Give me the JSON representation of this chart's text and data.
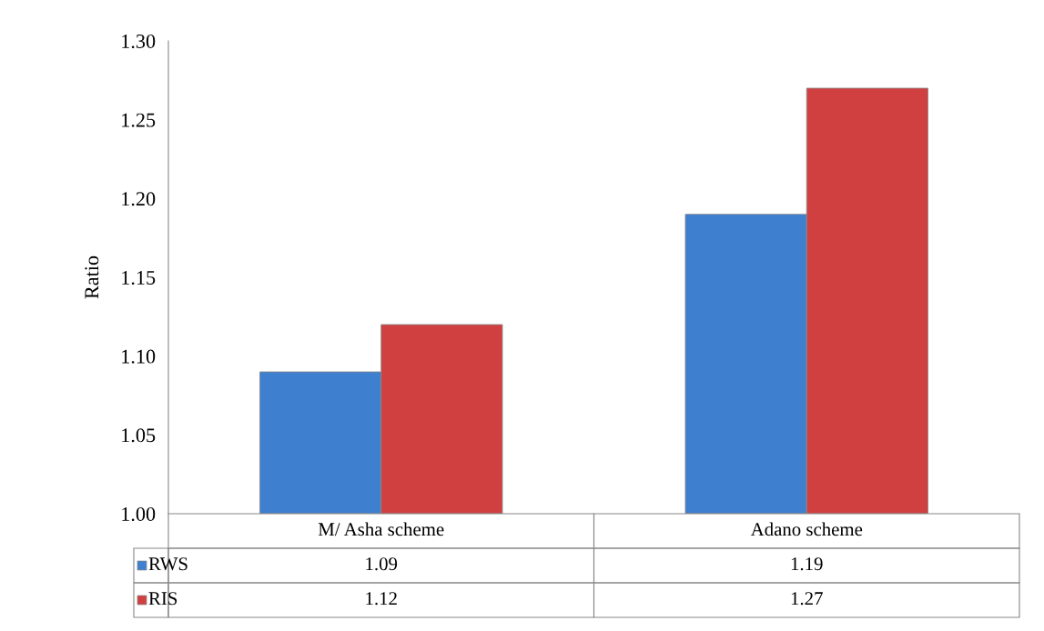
{
  "chart_data": {
    "type": "bar",
    "ylabel": "Ratio",
    "categories": [
      "M/ Asha scheme",
      "Adano scheme"
    ],
    "series": [
      {
        "name": "RWS",
        "color": "#3f7fd0",
        "values": [
          1.09,
          1.19
        ]
      },
      {
        "name": "RIS",
        "color": "#d04040",
        "values": [
          1.12,
          1.27
        ]
      }
    ],
    "ylim": [
      1.0,
      1.3
    ],
    "yticks": [
      {
        "value": 1.0,
        "label": "1.00"
      },
      {
        "value": 1.05,
        "label": "1.05"
      },
      {
        "value": 1.1,
        "label": "1.10"
      },
      {
        "value": 1.15,
        "label": "1.15"
      },
      {
        "value": 1.2,
        "label": "1.20"
      },
      {
        "value": 1.25,
        "label": "1.25"
      },
      {
        "value": 1.3,
        "label": "1.30"
      }
    ],
    "data_labels": true,
    "grid": false,
    "legend": "bottom left"
  }
}
